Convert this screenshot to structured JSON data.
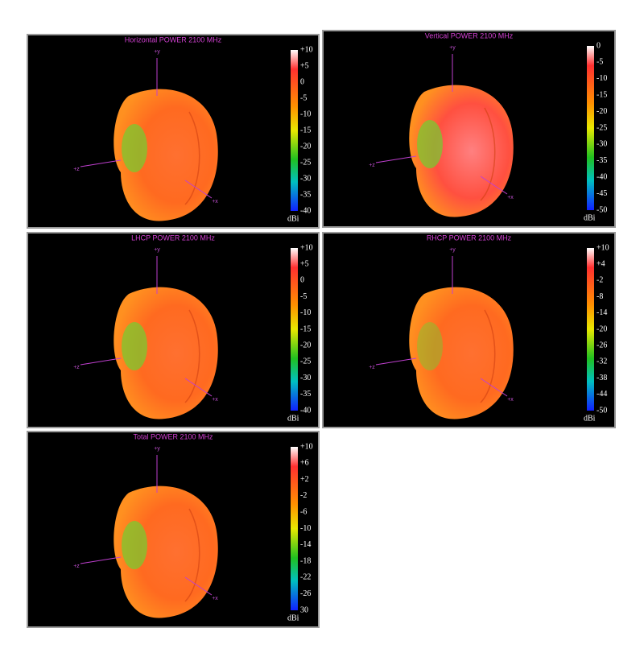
{
  "panels": [
    {
      "title": "Horizontal POWER 2100 MHz",
      "axes": {
        "y": "+y",
        "z": "+z",
        "x": "+x"
      },
      "colorbar": {
        "ticks": [
          "+10",
          "+5",
          "0",
          "-5",
          "-10",
          "-15",
          "-20",
          "-25",
          "-30",
          "-35",
          "-40"
        ],
        "unit": "dBi"
      }
    },
    {
      "title": "Vertical POWER 2100 MHz",
      "axes": {
        "y": "+y",
        "z": "+z",
        "x": "+x"
      },
      "colorbar": {
        "ticks": [
          "0",
          "-5",
          "-10",
          "-15",
          "-20",
          "-25",
          "-30",
          "-35",
          "-40",
          "-45",
          "-50"
        ],
        "unit": "dBi"
      }
    },
    {
      "title": "LHCP POWER 2100 MHz",
      "axes": {
        "y": "+y",
        "z": "+z",
        "x": "+x"
      },
      "colorbar": {
        "ticks": [
          "+10",
          "+5",
          "0",
          "-5",
          "-10",
          "-15",
          "-20",
          "-25",
          "-30",
          "-35",
          "-40"
        ],
        "unit": "dBi"
      }
    },
    {
      "title": "RHCP POWER 2100 MHz",
      "axes": {
        "y": "+y",
        "z": "+z",
        "x": "+x"
      },
      "colorbar": {
        "ticks": [
          "+10",
          "+4",
          "-2",
          "-8",
          "-14",
          "-20",
          "-26",
          "-32",
          "-38",
          "-44",
          "-50"
        ],
        "unit": "dBi"
      }
    },
    {
      "title": "Total POWER 2100 MHz",
      "axes": {
        "y": "+y",
        "z": "+z",
        "x": "+x"
      },
      "colorbar": {
        "ticks": [
          "+10",
          "+6",
          "+2",
          "-2",
          "-6",
          "-10",
          "-14",
          "-18",
          "-22",
          "-26",
          "30"
        ],
        "unit": "dBi"
      }
    }
  ]
}
